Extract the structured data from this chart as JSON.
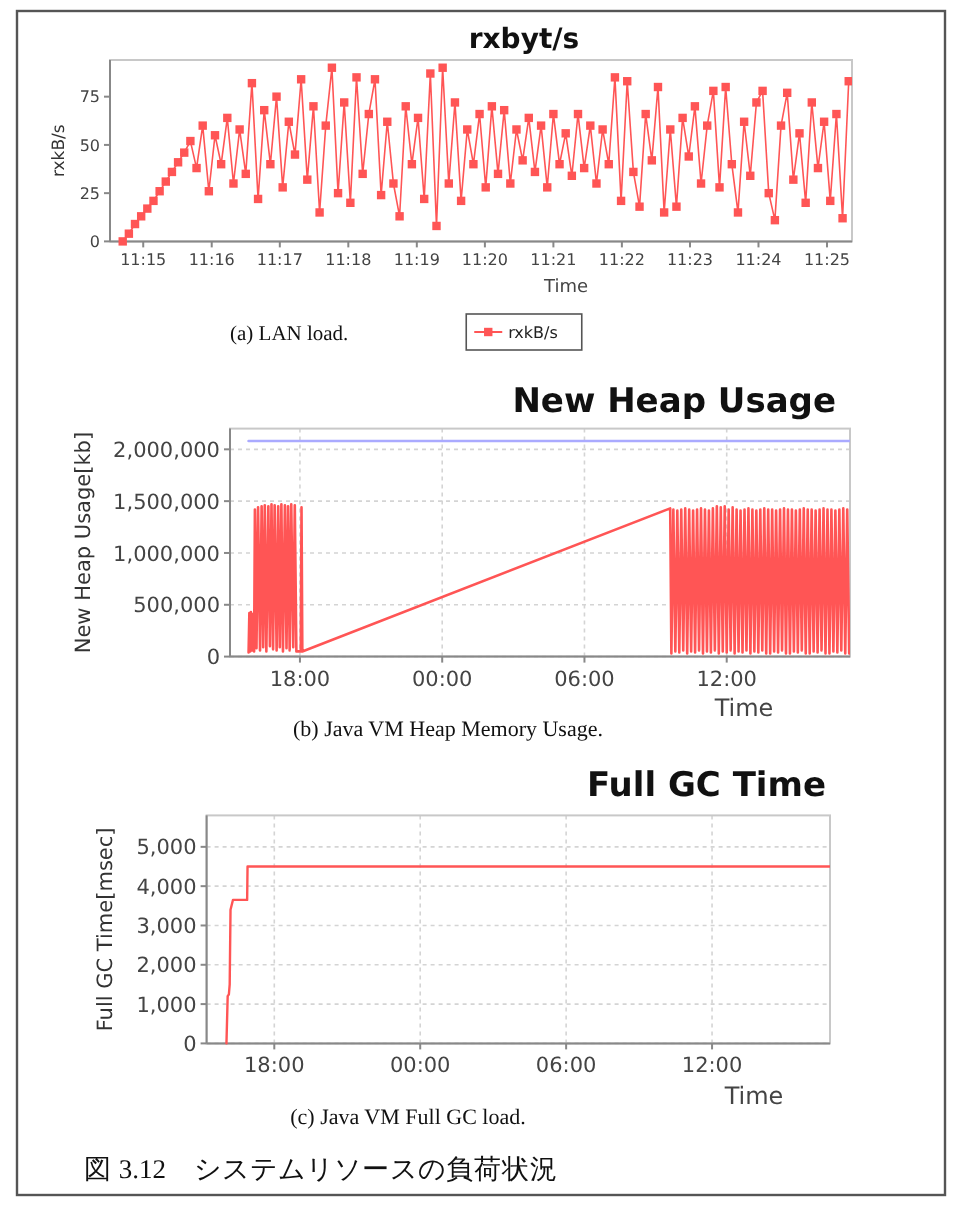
{
  "chart_data": [
    {
      "type": "line",
      "title": "rxbyt/s",
      "xlabel": "Time",
      "ylabel": "rxkB/s",
      "marker": "square",
      "legend": "bottom",
      "grid": false,
      "xlim": [
        11.2419,
        11.4228
      ],
      "xticks": [
        {
          "value": 11.25,
          "label": "11:15"
        },
        {
          "value": 11.2667,
          "label": "11:16"
        },
        {
          "value": 11.2833,
          "label": "11:17"
        },
        {
          "value": 11.3,
          "label": "11:18"
        },
        {
          "value": 11.3167,
          "label": "11:19"
        },
        {
          "value": 11.3333,
          "label": "11:20"
        },
        {
          "value": 11.35,
          "label": "11:21"
        },
        {
          "value": 11.3667,
          "label": "11:22"
        },
        {
          "value": 11.3833,
          "label": "11:23"
        },
        {
          "value": 11.4,
          "label": "11:24"
        },
        {
          "value": 11.4167,
          "label": "11:25"
        }
      ],
      "ylim": [
        0,
        94
      ],
      "yticks": [
        0,
        25,
        50,
        75
      ],
      "series": [
        {
          "name": "rxkB/s",
          "color": "#ff5555",
          "x": [
            11.245,
            11.2465,
            11.248,
            11.2495,
            11.251,
            11.2525,
            11.254,
            11.2555,
            11.257,
            11.2585,
            11.26,
            11.2615,
            11.263,
            11.2645,
            11.266,
            11.2675,
            11.269,
            11.2705,
            11.272,
            11.2735,
            11.275,
            11.2765,
            11.278,
            11.2795,
            11.281,
            11.2825,
            11.284,
            11.2855,
            11.287,
            11.2885,
            11.29,
            11.2915,
            11.293,
            11.2945,
            11.296,
            11.2975,
            11.299,
            11.3005,
            11.302,
            11.3035,
            11.305,
            11.3065,
            11.308,
            11.3095,
            11.311,
            11.3125,
            11.314,
            11.3155,
            11.317,
            11.3185,
            11.32,
            11.3215,
            11.323,
            11.3245,
            11.326,
            11.3275,
            11.329,
            11.3305,
            11.332,
            11.3335,
            11.335,
            11.3365,
            11.338,
            11.3395,
            11.341,
            11.3425,
            11.344,
            11.3455,
            11.347,
            11.3485,
            11.35,
            11.3515,
            11.353,
            11.3545,
            11.356,
            11.3575,
            11.359,
            11.3605,
            11.362,
            11.3635,
            11.365,
            11.3665,
            11.368,
            11.3695,
            11.371,
            11.3725,
            11.374,
            11.3755,
            11.377,
            11.3785,
            11.38,
            11.3815,
            11.383,
            11.3845,
            11.386,
            11.3875,
            11.389,
            11.3905,
            11.392,
            11.3935,
            11.395,
            11.3965,
            11.398,
            11.3995,
            11.401,
            11.4025,
            11.404,
            11.4055,
            11.407,
            11.4085,
            11.41,
            11.4115,
            11.413,
            11.4145,
            11.416,
            11.4175,
            11.419,
            11.4205,
            11.422
          ],
          "values": [
            0,
            4,
            9,
            13,
            17,
            21,
            26,
            31,
            36,
            41,
            46,
            52,
            38,
            60,
            26,
            55,
            40,
            64,
            30,
            58,
            35,
            82,
            22,
            68,
            40,
            75,
            28,
            62,
            45,
            84,
            32,
            70,
            15,
            60,
            90,
            25,
            72,
            20,
            85,
            35,
            66,
            84,
            24,
            62,
            30,
            13,
            70,
            40,
            64,
            22,
            87,
            8,
            90,
            30,
            72,
            21,
            58,
            40,
            66,
            28,
            70,
            35,
            68,
            30,
            58,
            42,
            64,
            36,
            60,
            28,
            66,
            40,
            56,
            34,
            66,
            38,
            60,
            30,
            58,
            40,
            85,
            21,
            83,
            36,
            18,
            66,
            42,
            80,
            15,
            58,
            18,
            64,
            44,
            70,
            30,
            60,
            78,
            28,
            80,
            40,
            15,
            62,
            34,
            72,
            78,
            25,
            11,
            60,
            77,
            32,
            56,
            20,
            72,
            38,
            62,
            21,
            66,
            12,
            83
          ]
        }
      ],
      "annotations": [
        "(a) LAN load."
      ]
    },
    {
      "type": "line",
      "title": "New Heap Usage",
      "xlabel": "Time",
      "ylabel": "New Heap Usage[kb]",
      "grid": true,
      "xlim": [
        "2000-01-01T15:03",
        "2000-01-02T17:12"
      ],
      "xticks": [
        {
          "value": "2000-01-01T18:00",
          "label": "18:00"
        },
        {
          "value": "2000-01-02T00:00",
          "label": "00:00"
        },
        {
          "value": "2000-01-02T06:00",
          "label": "06:00"
        },
        {
          "value": "2000-01-02T12:00",
          "label": "12:00"
        }
      ],
      "ylim": [
        0,
        2200000
      ],
      "yticks": [
        0,
        {
          "value": 500000,
          "label": "500,000"
        },
        {
          "value": 1000000,
          "label": "1,000,000"
        },
        {
          "value": 1500000,
          "label": "1,500,000"
        },
        {
          "value": 2000000,
          "label": "2,000,000"
        }
      ],
      "series": [
        {
          "color": "#ff5555",
          "x": [
            "2000-01-01T15:50",
            "2000-01-01T15:52",
            "2000-01-01T15:54",
            "2000-01-01T15:56",
            "2000-01-01T15:59",
            "2000-01-01T16:01",
            "2000-01-01T16:04",
            "2000-01-01T16:06",
            "2000-01-01T16:10",
            "2000-01-01T16:14",
            "2000-01-01T16:19",
            "2000-01-01T16:23",
            "2000-01-01T16:27",
            "2000-01-01T16:31",
            "2000-01-01T16:35",
            "2000-01-01T16:40",
            "2000-01-01T16:44",
            "2000-01-01T16:48",
            "2000-01-01T16:52",
            "2000-01-01T16:56",
            "2000-01-01T17:01",
            "2000-01-01T17:05",
            "2000-01-01T17:09",
            "2000-01-01T17:13",
            "2000-01-01T17:17",
            "2000-01-01T17:22",
            "2000-01-01T17:26",
            "2000-01-01T17:30",
            "2000-01-01T17:34",
            "2000-01-01T17:38",
            "2000-01-01T17:43",
            "2000-01-01T17:47",
            "2000-01-01T17:51",
            "2000-01-01T18:02",
            "2000-01-01T18:04",
            "2000-01-01T18:06",
            "2000-01-02T09:37",
            "2000-01-02T09:40",
            "2000-01-02T09:45",
            "2000-01-02T09:50",
            "2000-01-02T09:55",
            "2000-01-02T10:00",
            "2000-01-02T10:05",
            "2000-01-02T10:10",
            "2000-01-02T10:15",
            "2000-01-02T10:20",
            "2000-01-02T10:25",
            "2000-01-02T10:30",
            "2000-01-02T10:35",
            "2000-01-02T10:40",
            "2000-01-02T10:45",
            "2000-01-02T10:50",
            "2000-01-02T10:55",
            "2000-01-02T11:00",
            "2000-01-02T11:05",
            "2000-01-02T11:10",
            "2000-01-02T11:15",
            "2000-01-02T11:20",
            "2000-01-02T11:25",
            "2000-01-02T11:30",
            "2000-01-02T11:35",
            "2000-01-02T11:40",
            "2000-01-02T11:45",
            "2000-01-02T11:50",
            "2000-01-02T11:55",
            "2000-01-02T12:00",
            "2000-01-02T12:05",
            "2000-01-02T12:10",
            "2000-01-02T12:15",
            "2000-01-02T12:20",
            "2000-01-02T12:25",
            "2000-01-02T12:30",
            "2000-01-02T12:35",
            "2000-01-02T12:40",
            "2000-01-02T12:45",
            "2000-01-02T12:50",
            "2000-01-02T12:55",
            "2000-01-02T13:00",
            "2000-01-02T13:05",
            "2000-01-02T13:10",
            "2000-01-02T13:15",
            "2000-01-02T13:20",
            "2000-01-02T13:25",
            "2000-01-02T13:30",
            "2000-01-02T13:35",
            "2000-01-02T13:40",
            "2000-01-02T13:45",
            "2000-01-02T13:50",
            "2000-01-02T13:55",
            "2000-01-02T14:00",
            "2000-01-02T14:05",
            "2000-01-02T14:10",
            "2000-01-02T14:15",
            "2000-01-02T14:20",
            "2000-01-02T14:25",
            "2000-01-02T14:30",
            "2000-01-02T14:35",
            "2000-01-02T14:40",
            "2000-01-02T14:45",
            "2000-01-02T14:50",
            "2000-01-02T14:55",
            "2000-01-02T15:00",
            "2000-01-02T15:05",
            "2000-01-02T15:10",
            "2000-01-02T15:15",
            "2000-01-02T15:20",
            "2000-01-02T15:25",
            "2000-01-02T15:30",
            "2000-01-02T15:35",
            "2000-01-02T15:40",
            "2000-01-02T15:45",
            "2000-01-02T15:50",
            "2000-01-02T15:55",
            "2000-01-02T16:00",
            "2000-01-02T16:05",
            "2000-01-02T16:10",
            "2000-01-02T16:15",
            "2000-01-02T16:20",
            "2000-01-02T16:25",
            "2000-01-02T16:30",
            "2000-01-02T16:35",
            "2000-01-02T16:40",
            "2000-01-02T16:45",
            "2000-01-02T16:50",
            "2000-01-02T16:55",
            "2000-01-02T17:00",
            "2000-01-02T17:05",
            "2000-01-02T17:10"
          ],
          "values": [
            40000,
            420000,
            50000,
            430000,
            60000,
            410000,
            50000,
            1420000,
            80000,
            1440000,
            60000,
            1450000,
            90000,
            1460000,
            50000,
            1450000,
            100000,
            1470000,
            70000,
            1460000,
            60000,
            1450000,
            90000,
            1470000,
            50000,
            1460000,
            80000,
            1450000,
            60000,
            1470000,
            90000,
            1460000,
            50000,
            50000,
            1440000,
            50000,
            1430000,
            30000,
            1420000,
            50000,
            1410000,
            40000,
            1420000,
            60000,
            1430000,
            30000,
            1420000,
            50000,
            1410000,
            40000,
            1420000,
            60000,
            1430000,
            30000,
            1420000,
            50000,
            1410000,
            40000,
            1430000,
            60000,
            1450000,
            30000,
            1440000,
            50000,
            1450000,
            40000,
            1420000,
            60000,
            1440000,
            30000,
            1420000,
            50000,
            1410000,
            40000,
            1420000,
            60000,
            1430000,
            30000,
            1420000,
            50000,
            1410000,
            40000,
            1420000,
            60000,
            1430000,
            30000,
            1420000,
            30000,
            1420000,
            50000,
            1410000,
            40000,
            1420000,
            60000,
            1430000,
            30000,
            1420000,
            30000,
            1420000,
            50000,
            1410000,
            40000,
            1420000,
            60000,
            1430000,
            30000,
            1420000,
            30000,
            1420000,
            50000,
            1410000,
            40000,
            1420000,
            60000,
            1430000,
            30000,
            1420000,
            30000,
            1420000,
            50000,
            1410000,
            40000,
            1420000,
            60000,
            1430000,
            30000,
            1420000,
            30000
          ]
        },
        {
          "color": "#aaaaff",
          "x": [
            "2000-01-01T15:50",
            "2000-01-02T17:12"
          ],
          "values": [
            2080000,
            2080000
          ]
        }
      ],
      "annotations": [
        "(b) Java VM Heap Memory Usage."
      ]
    },
    {
      "type": "line",
      "title": "Full GC Time",
      "xlabel": "Time",
      "ylabel": "Full GC Time[msec]",
      "grid": true,
      "xlim": [
        "2000-01-01T15:13",
        "2000-01-02T16:51"
      ],
      "xticks": [
        {
          "value": "2000-01-01T18:00",
          "label": "18:00"
        },
        {
          "value": "2000-01-02T00:00",
          "label": "00:00"
        },
        {
          "value": "2000-01-02T06:00",
          "label": "06:00"
        },
        {
          "value": "2000-01-02T12:00",
          "label": "12:00"
        }
      ],
      "ylim": [
        0,
        5800
      ],
      "yticks": [
        0,
        {
          "value": 1000,
          "label": "1,000"
        },
        {
          "value": 2000,
          "label": "2,000"
        },
        {
          "value": 3000,
          "label": "3,000"
        },
        {
          "value": 4000,
          "label": "4,000"
        },
        {
          "value": 5000,
          "label": "5,000"
        }
      ],
      "series": [
        {
          "color": "#ff5555",
          "x": [
            "2000-01-01T16:02",
            "2000-01-01T16:05",
            "2000-01-01T16:08",
            "2000-01-01T16:10",
            "2000-01-01T16:12",
            "2000-01-01T16:18",
            "2000-01-01T16:53",
            "2000-01-01T16:54",
            "2000-01-02T16:51"
          ],
          "values": [
            0,
            1200,
            1250,
            1500,
            3400,
            3650,
            3650,
            4500,
            4500
          ]
        }
      ],
      "annotations": [
        "(c) Java VM Full GC load.",
        "図 3.12　システムリソースの負荷状況"
      ]
    }
  ]
}
